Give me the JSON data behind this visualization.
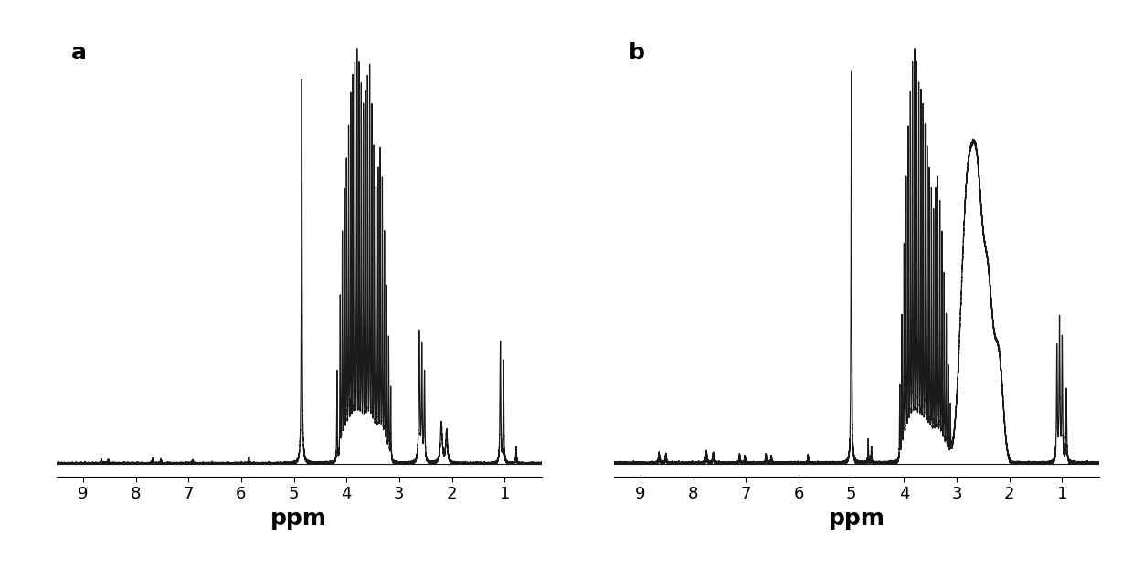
{
  "background_color": "#ffffff",
  "label_a": "a",
  "label_b": "b",
  "xlabel": "ppm",
  "xlim": [
    9.5,
    0.3
  ],
  "ylim": [
    -0.03,
    1.05
  ],
  "xticks": [
    9,
    8,
    7,
    6,
    5,
    4,
    3,
    2,
    1
  ],
  "line_color": "#1a1a1a",
  "line_width": 0.9,
  "label_fontsize": 18,
  "tick_fontsize": 13,
  "xlabel_fontsize": 18
}
